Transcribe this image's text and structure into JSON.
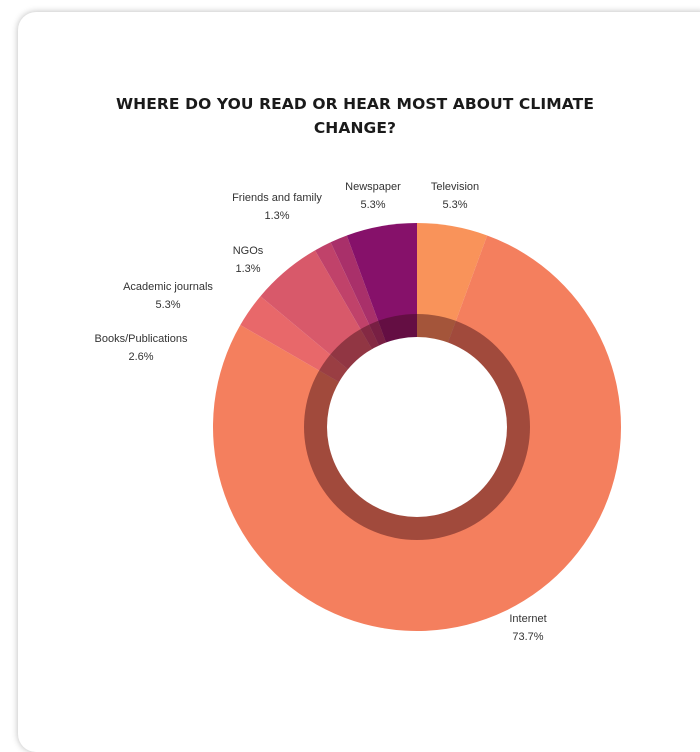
{
  "chart_data": {
    "type": "pie",
    "style": "donut",
    "title_lines": [
      "WHERE DO YOU READ OR HEAR MOST ABOUT CLIMATE",
      "CHANGE?"
    ],
    "slices": [
      {
        "label": "Television",
        "value_label": "5.3%",
        "value": 5.3,
        "color": "#f9935a"
      },
      {
        "label": "Internet",
        "value_label": "73.7%",
        "value": 73.7,
        "color": "#f47f5e"
      },
      {
        "label": "Books/Publications",
        "value_label": "2.6%",
        "value": 2.6,
        "color": "#e8686a"
      },
      {
        "label": "Academic journals",
        "value_label": "5.3%",
        "value": 5.3,
        "color": "#d8596a"
      },
      {
        "label": "NGOs",
        "value_label": "1.3%",
        "value": 1.3,
        "color": "#c0426a"
      },
      {
        "label": "Friends and family",
        "value_label": "1.3%",
        "value": 1.3,
        "color": "#a9306a"
      },
      {
        "label": "Newspaper",
        "value_label": "5.3%",
        "value": 5.3,
        "color": "#86116a"
      }
    ]
  }
}
